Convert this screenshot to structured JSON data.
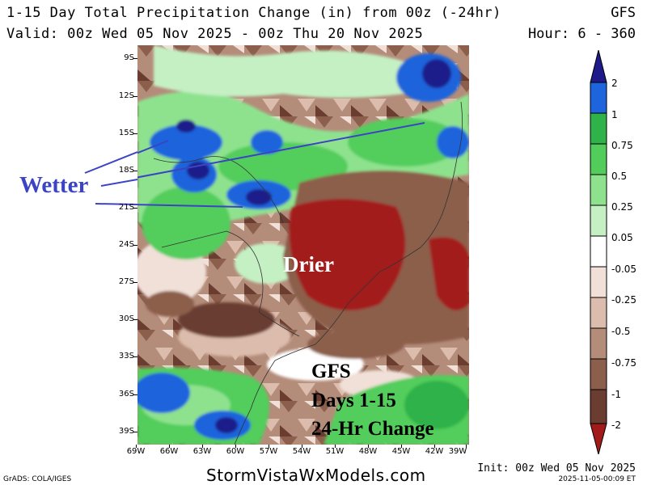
{
  "header": {
    "title": "1-15 Day Total Precipitation Change (in) from 00z (-24hr)",
    "model": "GFS",
    "valid": "Valid: 00z Wed 05 Nov 2025 - 00z Thu 20 Nov 2025",
    "hours": "Hour: 6 - 360"
  },
  "axes": {
    "latitudes": [
      "9S",
      "12S",
      "15S",
      "18S",
      "21S",
      "24S",
      "27S",
      "30S",
      "33S",
      "36S",
      "39S"
    ],
    "longitudes": [
      "69W",
      "66W",
      "63W",
      "60W",
      "57W",
      "54W",
      "51W",
      "48W",
      "45W",
      "42W",
      "39W"
    ]
  },
  "colorbar": {
    "levels": [
      "2",
      "1",
      "0.75",
      "0.5",
      "0.25",
      "0.05",
      "-0.05",
      "-0.25",
      "-0.5",
      "-0.75",
      "-1",
      "-2"
    ],
    "colors": [
      "#1e1a8a",
      "#1e64dc",
      "#2fb24a",
      "#52cd5c",
      "#8ee28e",
      "#c4f0c4",
      "#ffffff",
      "#f0e0d8",
      "#dcbcac",
      "#b48c7a",
      "#8c5e4c",
      "#6a3d30",
      "#a31a1a"
    ]
  },
  "annotations": {
    "wetter": "Wetter",
    "drier": "Drier",
    "gfs_line1": "GFS",
    "gfs_line2": "Days 1-15",
    "gfs_line3": "24-Hr Change",
    "arrow_color": "#3b44c4"
  },
  "footer": {
    "grads": "GrADS: COLA/IGES",
    "brand": "StormVistaWxModels.com",
    "init": "Init: 00z Wed 05 Nov 2025",
    "stamp": "2025-11-05-00:09 ET"
  }
}
